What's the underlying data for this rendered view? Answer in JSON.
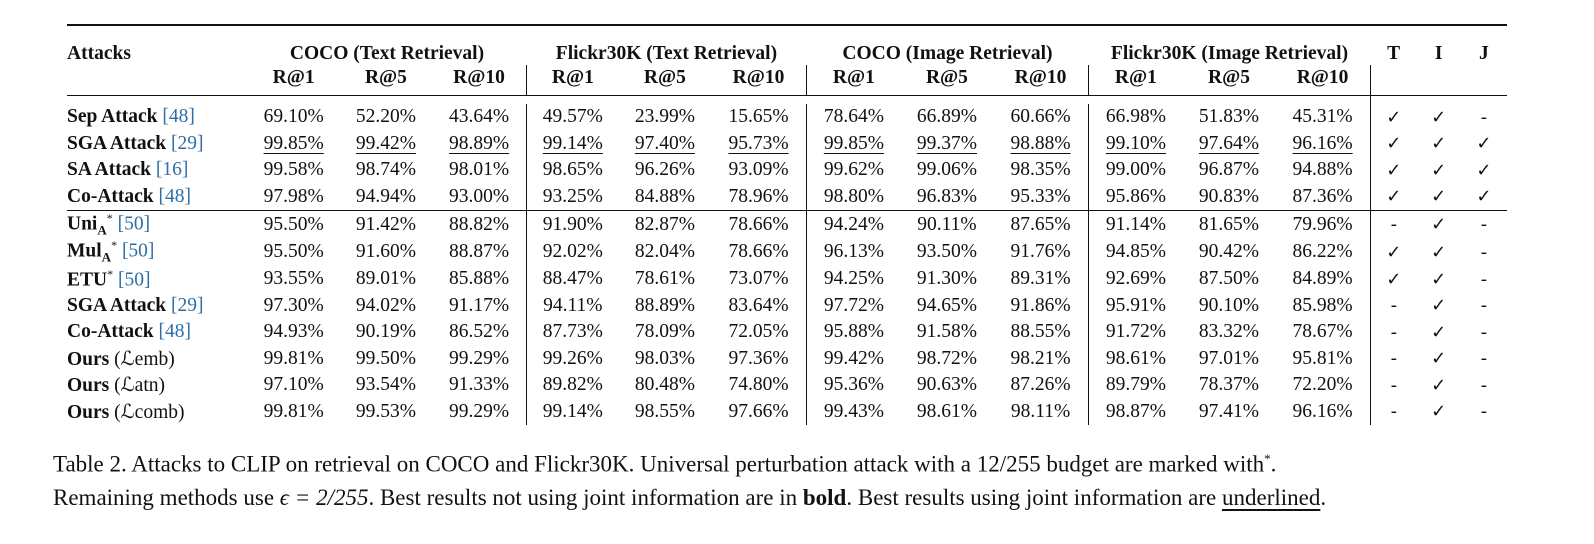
{
  "table": {
    "col_attacks": "Attacks",
    "groups": [
      "COCO (Text Retrieval)",
      "Flickr30K (Text Retrieval)",
      "COCO (Image Retrieval)",
      "Flickr30K (Image Retrieval)"
    ],
    "metrics": [
      "R@1",
      "R@5",
      "R@10"
    ],
    "flags": [
      "T",
      "I",
      "J"
    ],
    "rows": [
      {
        "name": "Sep Attack",
        "ref": "[48]",
        "vals": [
          "69.10%",
          "52.20%",
          "43.64%",
          "49.57%",
          "23.99%",
          "15.65%",
          "78.64%",
          "66.89%",
          "60.66%",
          "66.98%",
          "51.83%",
          "45.31%"
        ],
        "flags": [
          "✓",
          "✓",
          "-"
        ]
      },
      {
        "name": "SGA Attack",
        "ref": "[29]",
        "vals": [
          "99.85%",
          "99.42%",
          "98.89%",
          "99.14%",
          "97.40%",
          "95.73%",
          "99.85%",
          "99.37%",
          "98.88%",
          "99.10%",
          "97.64%",
          "96.16%"
        ],
        "flags": [
          "✓",
          "✓",
          "✓"
        ]
      },
      {
        "name": "SA Attack",
        "ref": "[16]",
        "vals": [
          "99.58%",
          "98.74%",
          "98.01%",
          "98.65%",
          "96.26%",
          "93.09%",
          "99.62%",
          "99.06%",
          "98.35%",
          "99.00%",
          "96.87%",
          "94.88%"
        ],
        "flags": [
          "✓",
          "✓",
          "✓"
        ]
      },
      {
        "name": "Co-Attack",
        "ref": "[48]",
        "vals": [
          "97.98%",
          "94.94%",
          "93.00%",
          "93.25%",
          "84.88%",
          "78.96%",
          "98.80%",
          "96.83%",
          "95.33%",
          "95.86%",
          "90.83%",
          "87.36%"
        ],
        "flags": [
          "✓",
          "✓",
          "✓"
        ]
      },
      {
        "name": "Uni",
        "sub": "A",
        "sup": "*",
        "ref": "[50]",
        "vals": [
          "95.50%",
          "91.42%",
          "88.82%",
          "91.90%",
          "82.87%",
          "78.66%",
          "94.24%",
          "90.11%",
          "87.65%",
          "91.14%",
          "81.65%",
          "79.96%"
        ],
        "flags": [
          "-",
          "✓",
          "-"
        ]
      },
      {
        "name": "Mul",
        "sub": "A",
        "sup": "*",
        "ref": "[50]",
        "vals": [
          "95.50%",
          "91.60%",
          "88.87%",
          "92.02%",
          "82.04%",
          "78.66%",
          "96.13%",
          "93.50%",
          "91.76%",
          "94.85%",
          "90.42%",
          "86.22%"
        ],
        "flags": [
          "✓",
          "✓",
          "-"
        ]
      },
      {
        "name": "ETU",
        "sup": "*",
        "ref": "[50]",
        "vals": [
          "93.55%",
          "89.01%",
          "85.88%",
          "88.47%",
          "78.61%",
          "73.07%",
          "94.25%",
          "91.30%",
          "89.31%",
          "92.69%",
          "87.50%",
          "84.89%"
        ],
        "flags": [
          "✓",
          "✓",
          "-"
        ]
      },
      {
        "name": "SGA Attack",
        "ref": "[29]",
        "vals": [
          "97.30%",
          "94.02%",
          "91.17%",
          "94.11%",
          "88.89%",
          "83.64%",
          "97.72%",
          "94.65%",
          "91.86%",
          "95.91%",
          "90.10%",
          "85.98%"
        ],
        "flags": [
          "-",
          "✓",
          "-"
        ]
      },
      {
        "name": "Co-Attack",
        "ref": "[48]",
        "vals": [
          "94.93%",
          "90.19%",
          "86.52%",
          "87.73%",
          "78.09%",
          "72.05%",
          "95.88%",
          "91.58%",
          "88.55%",
          "91.72%",
          "83.32%",
          "78.67%"
        ],
        "flags": [
          "-",
          "✓",
          "-"
        ]
      },
      {
        "name": "Ours",
        "loss": "(ℒemb)",
        "loss_sub": "emb",
        "vals": [
          "99.81%",
          "99.50%",
          "99.29%",
          "99.26%",
          "98.03%",
          "97.36%",
          "99.42%",
          "98.72%",
          "98.21%",
          "98.61%",
          "97.01%",
          "95.81%"
        ],
        "flags": [
          "-",
          "✓",
          "-"
        ]
      },
      {
        "name": "Ours",
        "loss": "(ℒatn)",
        "loss_sub": "atn",
        "vals": [
          "97.10%",
          "93.54%",
          "91.33%",
          "89.82%",
          "80.48%",
          "74.80%",
          "95.36%",
          "90.63%",
          "87.26%",
          "89.79%",
          "78.37%",
          "72.20%"
        ],
        "flags": [
          "-",
          "✓",
          "-"
        ]
      },
      {
        "name": "Ours",
        "loss": "(ℒcomb)",
        "loss_sub": "comb",
        "vals": [
          "99.81%",
          "99.53%",
          "99.29%",
          "99.14%",
          "98.55%",
          "97.66%",
          "99.43%",
          "98.61%",
          "98.11%",
          "98.87%",
          "97.41%",
          "96.16%"
        ],
        "flags": [
          "-",
          "✓",
          "-"
        ]
      }
    ],
    "bold_cells": [
      [
        9,
        0
      ],
      [
        9,
        2
      ],
      [
        9,
        3
      ],
      [
        9,
        7
      ],
      [
        9,
        8
      ],
      [
        11,
        0
      ],
      [
        11,
        1
      ],
      [
        11,
        2
      ],
      [
        11,
        4
      ],
      [
        11,
        5
      ],
      [
        11,
        6
      ],
      [
        11,
        9
      ],
      [
        11,
        10
      ],
      [
        11,
        11
      ]
    ],
    "underlined_cells": [
      [
        1,
        0
      ],
      [
        1,
        1
      ],
      [
        1,
        2
      ],
      [
        1,
        3
      ],
      [
        1,
        4
      ],
      [
        1,
        5
      ],
      [
        1,
        6
      ],
      [
        1,
        7
      ],
      [
        1,
        8
      ],
      [
        1,
        9
      ],
      [
        1,
        10
      ],
      [
        1,
        11
      ]
    ]
  },
  "caption": {
    "line1": "Table 2. Attacks to CLIP on retrieval on COCO and Flickr30K. Universal perturbation attack with a 12/255 budget are marked with",
    "line1_sup": "*",
    "line1_end": ".",
    "line2_a": "Remaining methods use ",
    "line2_math": "ϵ = 2/255",
    "line2_b": ". Best results not using joint information are in ",
    "line2_bold": "bold",
    "line2_c": ". Best results using joint information are ",
    "line2_underlined": "underlined",
    "line2_end": "."
  }
}
